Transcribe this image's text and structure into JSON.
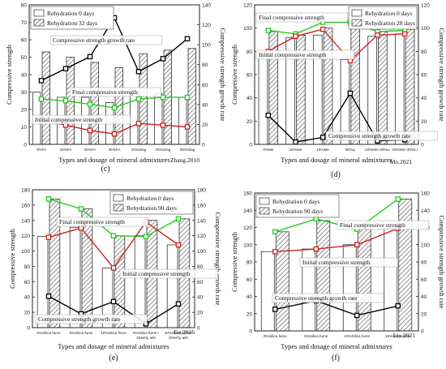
{
  "chart_data": [
    {
      "panel": "(c)",
      "type": "bar",
      "source": "Zhang.2010",
      "categories": [
        "0%FA",
        "15%FA",
        "25%FA",
        "35%FA",
        "15%Slag",
        "25%Slag",
        "35%Slag"
      ],
      "xlabel": "Types and dosage of mineral admixtures",
      "ylabel": "Compressive strength",
      "y2label": "Compressive strength growth rate",
      "ylim": [
        0,
        80
      ],
      "yticks": [
        0,
        10,
        20,
        30,
        40,
        50,
        60,
        70,
        80
      ],
      "y2lim": [
        0,
        140
      ],
      "y2ticks": [
        0,
        20,
        40,
        60,
        80,
        100,
        120,
        140
      ],
      "legend": "top-left",
      "series": [
        {
          "name": "Rehydration 0 days",
          "kind": "bar",
          "values": [
            30,
            27,
            27,
            24,
            29,
            29,
            27
          ]
        },
        {
          "name": "Rehydration 32 days",
          "kind": "bar",
          "values": [
            53,
            50,
            47,
            44,
            52,
            54,
            55
          ]
        },
        {
          "name": "Final compressive strength",
          "kind": "line",
          "color": "#22cc22",
          "axis": "left",
          "values": [
            26,
            25,
            23,
            21,
            26,
            27,
            27
          ]
        },
        {
          "name": "Initial compressive strength",
          "kind": "line",
          "color": "#cc2222",
          "axis": "left",
          "values": [
            14,
            11,
            8,
            6,
            12,
            11,
            10
          ]
        },
        {
          "name": "Compressive strength growth rate",
          "kind": "line",
          "color": "#000000",
          "axis": "right",
          "values": [
            64,
            76,
            88,
            127,
            73,
            86,
            106
          ]
        }
      ],
      "annotations": [
        "Compressive strength growth rate",
        "Final compressive strength",
        "Initial compressive strength"
      ]
    },
    {
      "panel": "(d)",
      "type": "bar",
      "source": "Mo.2021",
      "categories": [
        "0%Me",
        "10%Me",
        "15%Me",
        "30%Li",
        "10%Me+30%Li",
        "15%Me+30%Li"
      ],
      "xlabel": "Types and dosage of mineral admixtures",
      "ylabel": "Compressive strength",
      "y2label": "Compressive strength growth rate",
      "ylim": [
        0,
        120
      ],
      "yticks": [
        0,
        20,
        40,
        60,
        80,
        100,
        120
      ],
      "y2lim": [
        0,
        120
      ],
      "y2ticks": [
        0,
        20,
        40,
        60,
        80,
        100,
        120
      ],
      "legend": "top-right",
      "series": [
        {
          "name": "Rehydration 0 days",
          "kind": "bar",
          "values": [
            79,
            92,
            94,
            73,
            93,
            95
          ]
        },
        {
          "name": "Rehydration 28 days",
          "kind": "bar",
          "values": [
            97,
            94,
            100,
            105,
            97,
            99
          ]
        },
        {
          "name": "Final compressive strength",
          "kind": "line",
          "color": "#22cc22",
          "axis": "left",
          "values": [
            98,
            95,
            105,
            105,
            97,
            98
          ]
        },
        {
          "name": "Initial compressive strength",
          "kind": "line",
          "color": "#cc2222",
          "axis": "left",
          "values": [
            80,
            93,
            99,
            72,
            94,
            95
          ]
        },
        {
          "name": "Compressive strength growth rate",
          "kind": "line",
          "color": "#000000",
          "axis": "right",
          "values": [
            25,
            2,
            6,
            44,
            3,
            4
          ]
        }
      ],
      "annotations": [
        "Final compressive strength",
        "Initial compressive strength",
        "Compressive strength growth rate"
      ]
    },
    {
      "panel": "(e)",
      "type": "bar",
      "source": "Ge.2016",
      "categories": [
        "0%Silica fume",
        "5%Silica fume",
        "10%Silica fume",
        "5%Silica fume+ 15%Fly ash",
        "10%Silica fume+ 20%Fly ash"
      ],
      "xlabel": "Types and dosage of mineral admixtures",
      "ylabel": "Compressive strength",
      "y2label": "Compressive strength growth rate",
      "ylim": [
        0,
        180
      ],
      "yticks": [
        0,
        20,
        40,
        60,
        80,
        100,
        120,
        140,
        160,
        180
      ],
      "y2lim": [
        0,
        180
      ],
      "y2ticks": [
        0,
        20,
        40,
        60,
        80,
        100,
        120,
        140,
        160,
        180
      ],
      "legend": "top-right",
      "series": [
        {
          "name": "Rehydration 0 days",
          "kind": "bar",
          "values": [
            119,
            131,
            78,
            120,
            108
          ]
        },
        {
          "name": "Rehydration 90 days",
          "kind": "bar",
          "values": [
            168,
            155,
            120,
            140,
            142
          ]
        },
        {
          "name": "Final compressive strength",
          "kind": "line",
          "color": "#22cc22",
          "axis": "left",
          "values": [
            168,
            155,
            120,
            119,
            142
          ]
        },
        {
          "name": "Initial compressive strength",
          "kind": "line",
          "color": "#cc2222",
          "axis": "left",
          "values": [
            118,
            130,
            78,
            138,
            108
          ]
        },
        {
          "name": "Compressive strength growth rate",
          "kind": "line",
          "color": "#000000",
          "axis": "right",
          "values": [
            41,
            18,
            34,
            5,
            31
          ]
        }
      ],
      "annotations": [
        "Final compressive strength",
        "Initial compressive strength",
        "Compressive strength growth rate"
      ]
    },
    {
      "panel": "(f)",
      "type": "bar",
      "source": "Liu.2021",
      "categories": [
        "0%Silica fume",
        "5%Silica fume",
        "10%Silica fume",
        "15%Silica fume"
      ],
      "xlabel": "Types and dosage of mineral admixtures",
      "ylabel": "Compressive strength",
      "y2label": "Compressive strength growth rate",
      "ylim": [
        0,
        160
      ],
      "yticks": [
        0,
        20,
        40,
        60,
        80,
        100,
        120,
        140,
        160
      ],
      "y2lim": [
        0,
        160
      ],
      "y2ticks": [
        0,
        20,
        40,
        60,
        80,
        100,
        120,
        140,
        160
      ],
      "legend": "top-left",
      "series": [
        {
          "name": "Rehydration 0 days",
          "kind": "bar",
          "values": [
            92,
            95,
            100,
            119
          ]
        },
        {
          "name": "Rehydration 90 days",
          "kind": "bar",
          "values": [
            115,
            128,
            118,
            153
          ]
        },
        {
          "name": "Final compressive strength",
          "kind": "line",
          "color": "#22cc22",
          "axis": "left",
          "values": [
            115,
            130,
            118,
            153
          ]
        },
        {
          "name": "Initial compressive strength",
          "kind": "line",
          "color": "#cc2222",
          "axis": "left",
          "values": [
            92,
            95,
            100,
            119
          ]
        },
        {
          "name": "Compressive strength growth rate",
          "kind": "line",
          "color": "#000000",
          "axis": "right",
          "values": [
            25,
            35,
            18,
            29
          ]
        }
      ],
      "annotations": [
        "Final compressive strength",
        "Initial compressive strength",
        "Compressive strength growth rate"
      ]
    }
  ]
}
